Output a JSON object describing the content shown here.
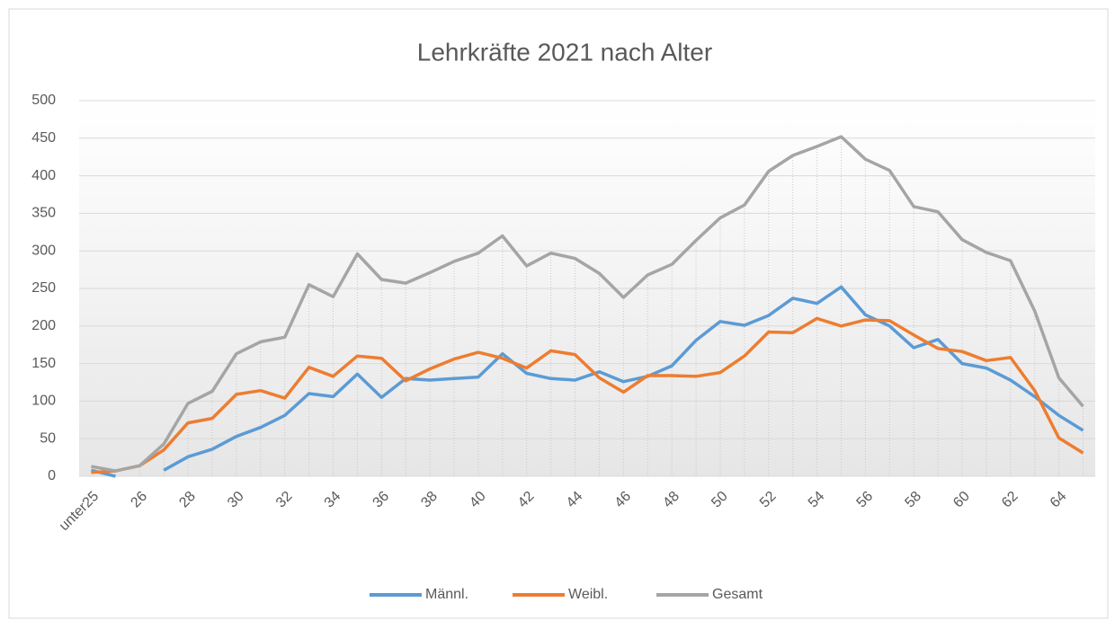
{
  "chart_data": {
    "type": "line",
    "title": "Lehrkräfte 2021 nach Alter",
    "categories": [
      "unter25",
      null,
      "26",
      null,
      "28",
      null,
      "30",
      null,
      "32",
      null,
      "34",
      null,
      "36",
      null,
      "38",
      null,
      "40",
      null,
      "42",
      null,
      "44",
      null,
      "46",
      null,
      "48",
      null,
      "50",
      null,
      "52",
      null,
      "54",
      null,
      "56",
      null,
      "58",
      null,
      "60",
      null,
      "62",
      null,
      "64",
      null
    ],
    "series": [
      {
        "name": "Männl.",
        "color": "#5b9bd5",
        "values": [
          8,
          0,
          null,
          8,
          26,
          36,
          53,
          65,
          81,
          110,
          106,
          136,
          105,
          130,
          128,
          130,
          132,
          163,
          137,
          130,
          128,
          139,
          126,
          133,
          147,
          181,
          206,
          201,
          214,
          237,
          230,
          252,
          215,
          200,
          171,
          182,
          150,
          144,
          128,
          106,
          81,
          61
        ]
      },
      {
        "name": "Weibl.",
        "color": "#ed7d31",
        "values": [
          5,
          7,
          14,
          35,
          71,
          77,
          109,
          114,
          104,
          145,
          133,
          160,
          157,
          127,
          143,
          156,
          165,
          157,
          144,
          167,
          162,
          131,
          112,
          134,
          134,
          133,
          138,
          160,
          192,
          191,
          210,
          200,
          208,
          207,
          188,
          170,
          166,
          154,
          158,
          114,
          51,
          31
        ]
      },
      {
        "name": "Gesamt",
        "color": "#a5a5a5",
        "values": [
          13,
          7,
          14,
          43,
          97,
          113,
          163,
          179,
          185,
          255,
          239,
          296,
          262,
          257,
          271,
          286,
          297,
          320,
          280,
          297,
          290,
          270,
          238,
          268,
          282,
          314,
          344,
          361,
          406,
          427,
          439,
          452,
          422,
          407,
          359,
          352,
          315,
          298,
          287,
          220,
          131,
          93
        ]
      }
    ],
    "ylim": [
      0,
      500
    ],
    "yticks": [
      0,
      50,
      100,
      150,
      200,
      250,
      300,
      350,
      400,
      450,
      500
    ],
    "grid": true,
    "legend": "bottom"
  }
}
